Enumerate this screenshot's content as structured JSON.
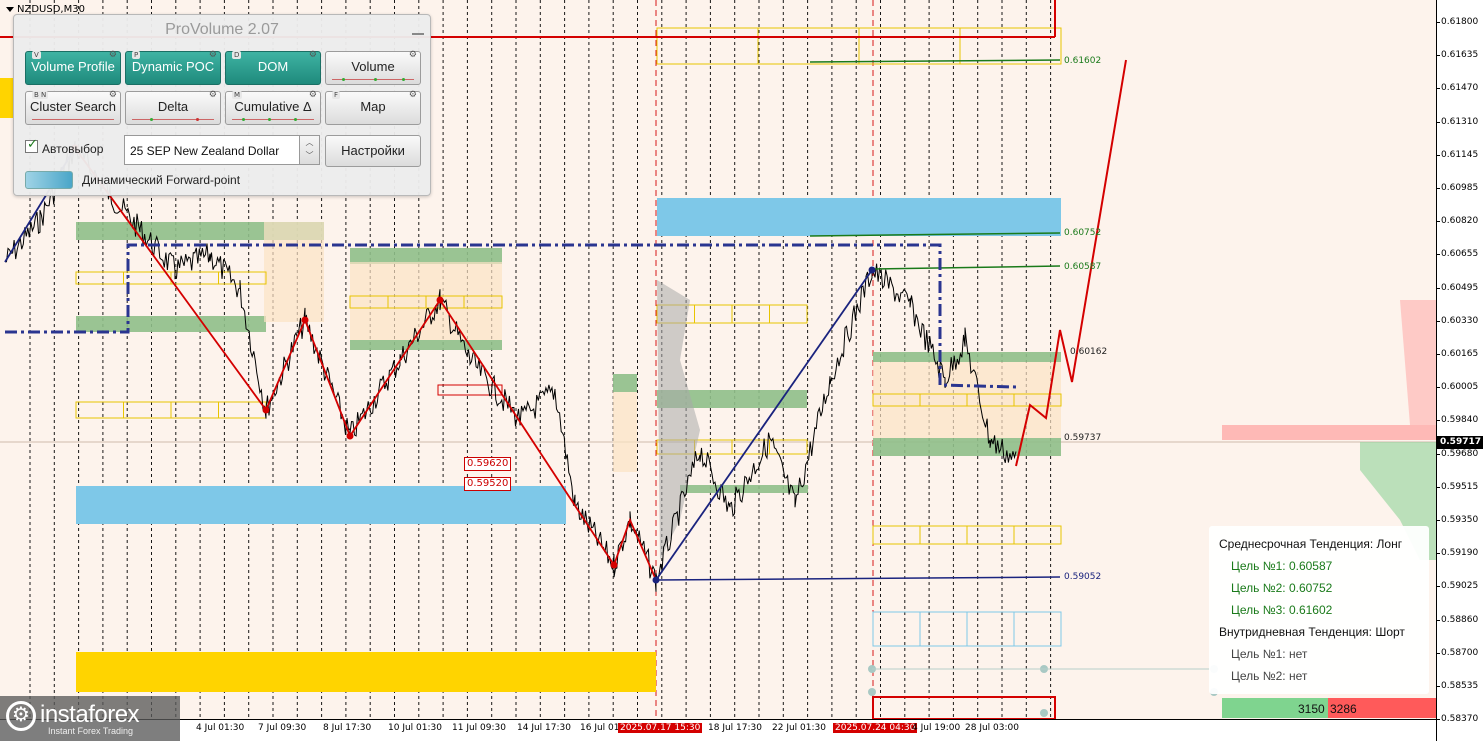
{
  "chart": {
    "symbol": "NZDUSD,M30",
    "current_price": "0.59717",
    "price_ticks": [
      "0.61800",
      "0.61635",
      "0.61470",
      "0.61310",
      "0.61145",
      "0.60985",
      "0.60820",
      "0.60655",
      "0.60495",
      "0.60330",
      "0.60165",
      "0.60005",
      "0.59840",
      "0.59680",
      "0.59515",
      "0.59350",
      "0.59190",
      "0.59025",
      "0.58860",
      "0.58700",
      "0.58535",
      "0.58370"
    ],
    "time_ticks": [
      "4 Jul 01:30",
      "7 Jul 09:30",
      "8 Jul 17:30",
      "10 Jul 01:30",
      "11 Jul 09:30",
      "14 Jul 17:30",
      "16 Jul 01:",
      "2025.07.17 15:30",
      "18 Jul 17:30",
      "22 Jul 01:30",
      "2025.07.24 04:30",
      "4 Jul 19:00",
      "28 Jul 03:00"
    ],
    "levels": [
      "0.61602",
      "0.60752",
      "0.60587",
      "0.60162",
      "0.59737",
      "0.59052"
    ],
    "box_labels": [
      "0.59620",
      "0.59520"
    ]
  },
  "panel": {
    "title": "ProVolume 2.07",
    "buttons": [
      {
        "label": "Volume Profile",
        "key": "V",
        "active": true
      },
      {
        "label": "Dynamic POC",
        "key": "P",
        "active": true
      },
      {
        "label": "DOM",
        "key": "D",
        "active": true
      },
      {
        "label": "Volume",
        "key": "",
        "active": false
      },
      {
        "label": "Cluster Search",
        "key": "B N",
        "active": false
      },
      {
        "label": "Delta",
        "key": "",
        "active": false
      },
      {
        "label": "Cumulative Δ",
        "key": "M",
        "active": false
      },
      {
        "label": "Map",
        "key": "F",
        "active": false
      }
    ],
    "auto_select_label": "Автовыбор",
    "contract": "25 SEP New Zealand Dollar",
    "settings_label": "Настройки",
    "forward_point_label": "Динамический Forward-point"
  },
  "trend": {
    "mid_title": "Среднесрочная Тенденция: Лонг",
    "mid_targets": [
      "Цель №1: 0.60587",
      "Цель №2: 0.60752",
      "Цель №3: 0.61602"
    ],
    "intraday_title": "Внутридневная Тенденция: Шорт",
    "intraday_targets": [
      "Цель №1: нет",
      "Цель №2: нет"
    ],
    "buy_volume": "3150",
    "sell_volume": "3286",
    "colors": {
      "long": "#1a7a1a",
      "short": "#d40000"
    }
  },
  "brand": {
    "name": "instaforex",
    "tagline": "Instant Forex Trading"
  }
}
